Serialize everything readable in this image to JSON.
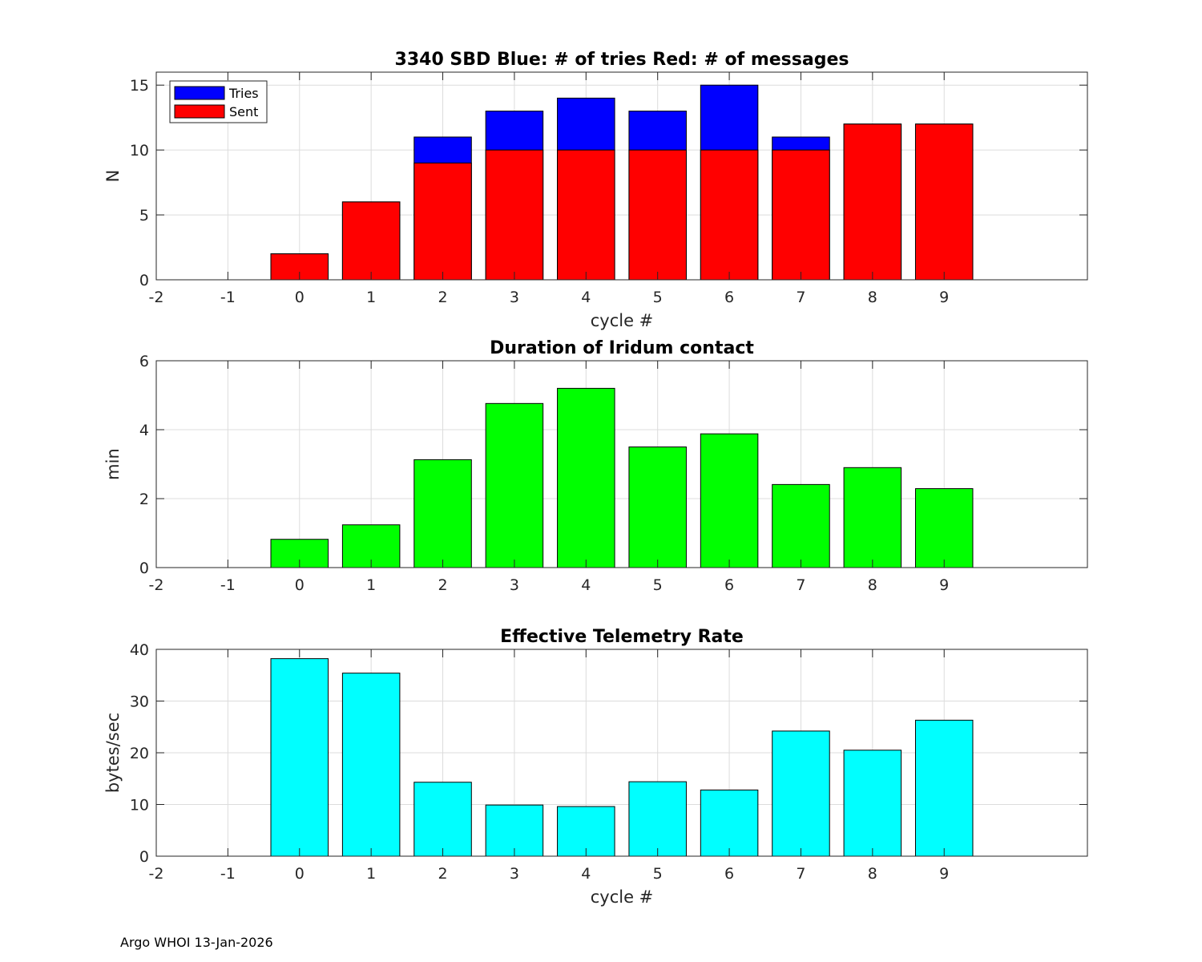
{
  "footer": "Argo WHOI 13-Jan-2026",
  "colors": {
    "tries": "#0000ff",
    "sent": "#ff0000",
    "duration": "#00ff00",
    "rate": "#00ffff",
    "grid": "#dcdcdc",
    "axis": "#262626"
  },
  "chart_data": [
    {
      "type": "bar",
      "stacked_overlay": true,
      "title": "3340 SBD  Blue: # of tries   Red: # of messages",
      "xlabel": "cycle #",
      "ylabel": "N",
      "xlim": [
        -2,
        11
      ],
      "ylim": [
        0,
        16
      ],
      "xticks": [
        -2,
        -1,
        0,
        1,
        2,
        3,
        4,
        5,
        6,
        7,
        8,
        9
      ],
      "yticks": [
        0,
        5,
        10,
        15
      ],
      "grid": true,
      "legend": {
        "position": "top-left",
        "entries": [
          "Tries",
          "Sent"
        ]
      },
      "categories": [
        0,
        1,
        2,
        3,
        4,
        5,
        6,
        7,
        8,
        9
      ],
      "series": [
        {
          "name": "Tries",
          "color": "#0000ff",
          "values": [
            2,
            6,
            11,
            13,
            14,
            13,
            15,
            11,
            12,
            12
          ]
        },
        {
          "name": "Sent",
          "color": "#ff0000",
          "values": [
            2,
            6,
            9,
            10,
            10,
            10,
            10,
            10,
            12,
            12
          ]
        }
      ]
    },
    {
      "type": "bar",
      "title": "Duration of Iridum contact",
      "xlabel": "",
      "ylabel": "min",
      "xlim": [
        -2,
        11
      ],
      "ylim": [
        0,
        6
      ],
      "xticks": [
        -2,
        -1,
        0,
        1,
        2,
        3,
        4,
        5,
        6,
        7,
        8,
        9
      ],
      "yticks": [
        0,
        2,
        4,
        6
      ],
      "grid": true,
      "categories": [
        0,
        1,
        2,
        3,
        4,
        5,
        6,
        7,
        8,
        9
      ],
      "series": [
        {
          "name": "Duration",
          "color": "#00ff00",
          "values": [
            0.82,
            1.24,
            3.13,
            4.76,
            5.2,
            3.5,
            3.88,
            2.41,
            2.9,
            2.29
          ]
        }
      ]
    },
    {
      "type": "bar",
      "title": "Effective Telemetry Rate",
      "xlabel": "cycle #",
      "ylabel": "bytes/sec",
      "xlim": [
        -2,
        11
      ],
      "ylim": [
        0,
        40
      ],
      "xticks": [
        -2,
        -1,
        0,
        1,
        2,
        3,
        4,
        5,
        6,
        7,
        8,
        9
      ],
      "yticks": [
        0,
        10,
        20,
        30,
        40
      ],
      "grid": true,
      "categories": [
        0,
        1,
        2,
        3,
        4,
        5,
        6,
        7,
        8,
        9
      ],
      "series": [
        {
          "name": "Rate",
          "color": "#00ffff",
          "values": [
            38.2,
            35.4,
            14.3,
            9.9,
            9.6,
            14.4,
            12.8,
            24.2,
            20.5,
            26.3
          ]
        }
      ]
    }
  ]
}
